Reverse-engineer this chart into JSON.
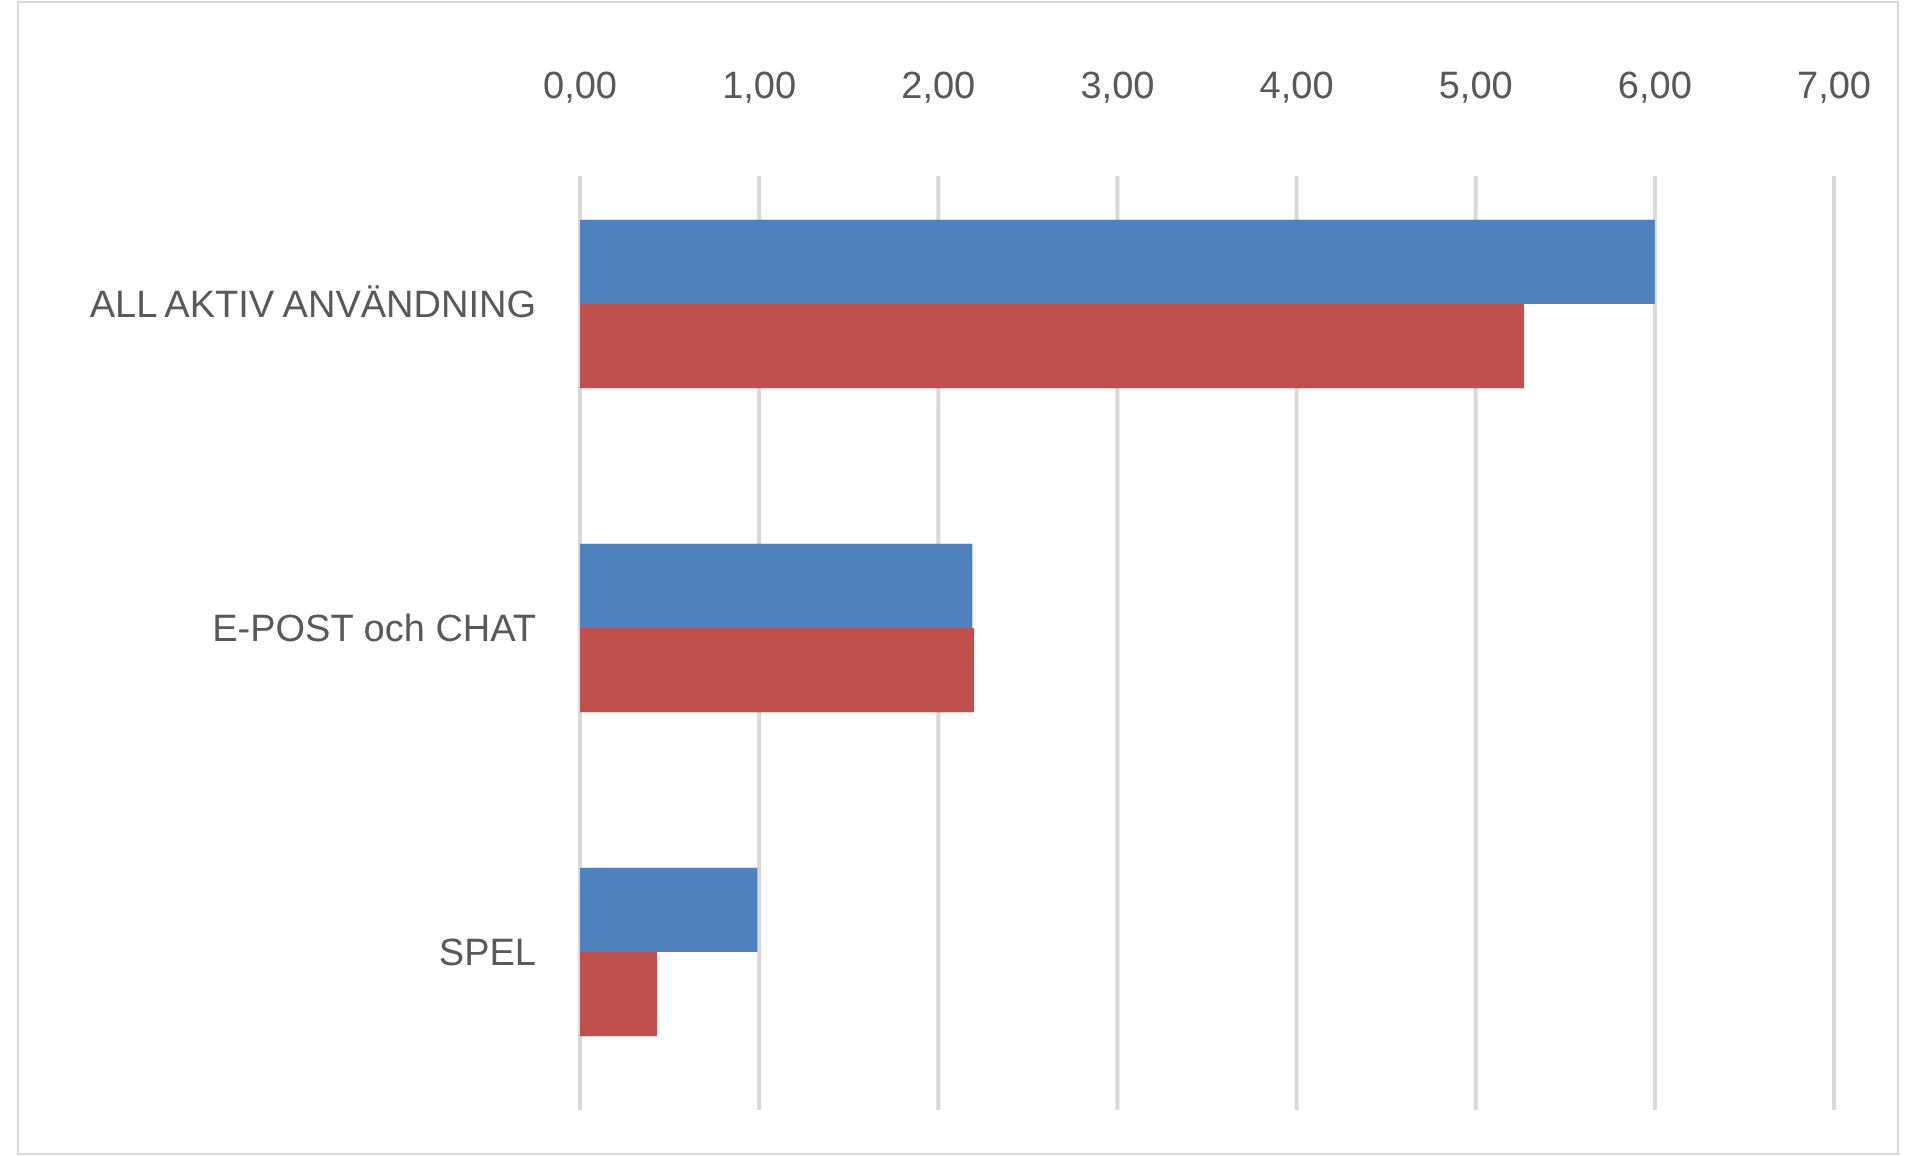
{
  "chart_data": {
    "type": "bar",
    "orientation": "horizontal",
    "categories": [
      "ALL AKTIV ANVÄNDNING",
      "E-POST och CHAT",
      "SPEL"
    ],
    "series": [
      {
        "color": "#4f81bd",
        "values": [
          6.0,
          2.19,
          0.99
        ]
      },
      {
        "color": "#c0504d",
        "values": [
          5.27,
          2.2,
          0.43
        ]
      }
    ],
    "xlim": [
      0,
      7
    ],
    "xticks": [
      {
        "value": 0,
        "label": "0,00"
      },
      {
        "value": 1,
        "label": "1,00"
      },
      {
        "value": 2,
        "label": "2,00"
      },
      {
        "value": 3,
        "label": "3,00"
      },
      {
        "value": 4,
        "label": "4,00"
      },
      {
        "value": 5,
        "label": "5,00"
      },
      {
        "value": 6,
        "label": "6,00"
      },
      {
        "value": 7,
        "label": "7,00"
      }
    ],
    "grid": "x"
  }
}
